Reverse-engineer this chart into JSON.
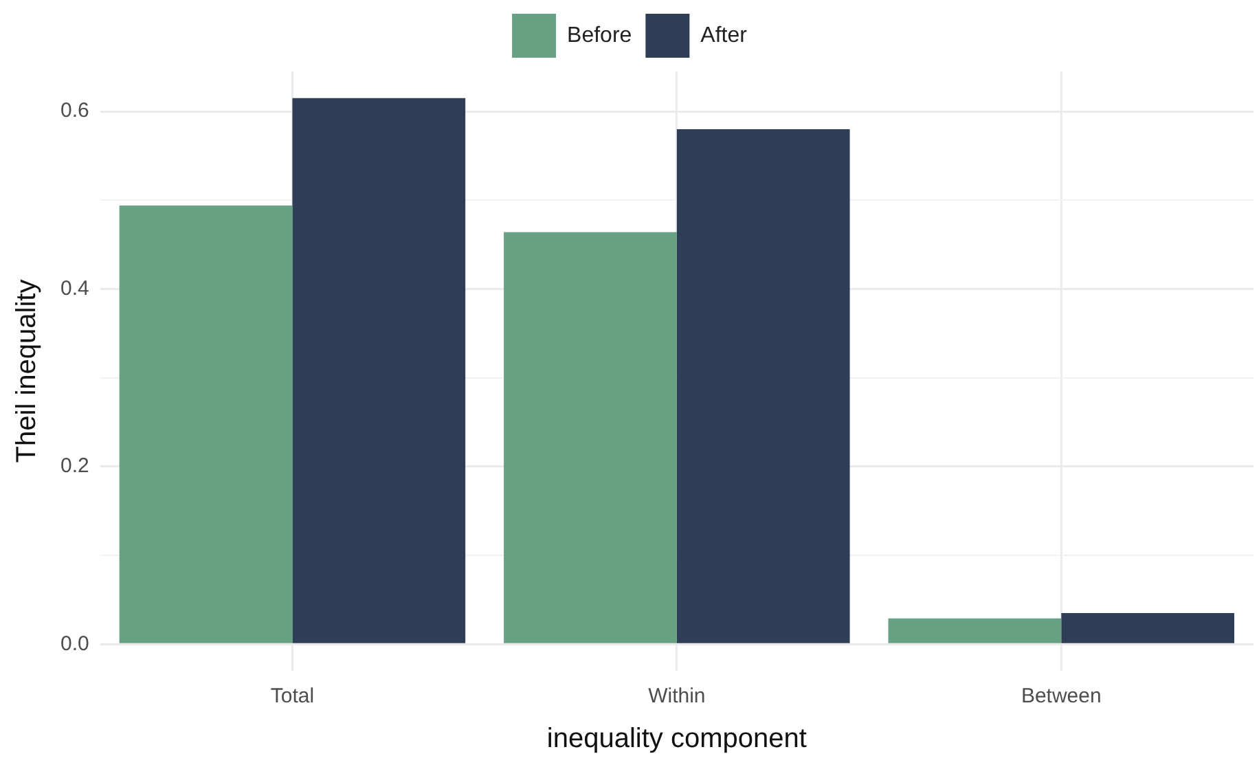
{
  "chart_data": {
    "type": "bar",
    "xlabel": "inequality component",
    "ylabel": "Theil inequality",
    "categories": [
      "Total",
      "Within",
      "Between"
    ],
    "series": [
      {
        "name": "Before",
        "color": "#67a284",
        "values": [
          0.494,
          0.464,
          0.029
        ]
      },
      {
        "name": "After",
        "color": "#2e3e56",
        "values": [
          0.615,
          0.58,
          0.035
        ]
      }
    ],
    "ylim": [
      -0.03,
      0.645
    ],
    "yticks": [
      {
        "value": 0,
        "label": "0.0"
      },
      {
        "value": 0.1,
        "label": null
      },
      {
        "value": 0.2,
        "label": "0.2"
      },
      {
        "value": 0.3,
        "label": null
      },
      {
        "value": 0.4,
        "label": "0.4"
      },
      {
        "value": 0.5,
        "label": null
      },
      {
        "value": 0.6,
        "label": "0.6"
      }
    ],
    "grid": true,
    "legend": "top"
  }
}
